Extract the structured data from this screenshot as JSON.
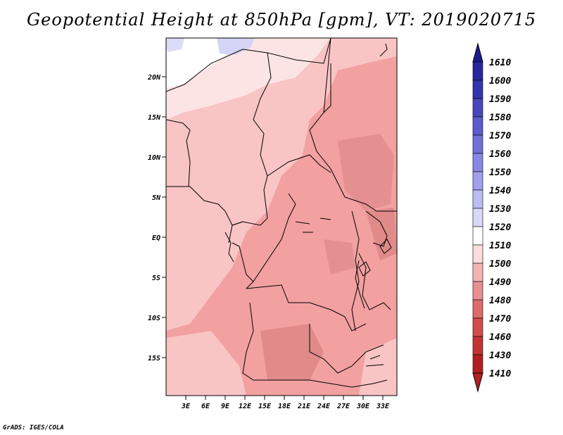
{
  "title": "Geopotential Height at 850hPa [gpm], VT: 2019020715",
  "credit": "GrADS: IGES/COLA",
  "map": {
    "lat_labels": [
      "20N",
      "15N",
      "10N",
      "5N",
      "EQ",
      "5S",
      "10S",
      "15S"
    ],
    "lon_labels": [
      "3E",
      "6E",
      "9E",
      "12E",
      "15E",
      "18E",
      "21E",
      "24E",
      "27E",
      "30E",
      "33E"
    ]
  },
  "colorbar": {
    "levels": [
      "1610",
      "1600",
      "1590",
      "1580",
      "1570",
      "1560",
      "1550",
      "1540",
      "1530",
      "1520",
      "1510",
      "1500",
      "1490",
      "1480",
      "1470",
      "1460",
      "1430",
      "1410"
    ],
    "colors": [
      "#1c1c8c",
      "#28289c",
      "#3434ac",
      "#4848bc",
      "#5c5ccc",
      "#7070d8",
      "#8888e4",
      "#a0a0ec",
      "#bcbcf2",
      "#d8d8f8",
      "#ffffff",
      "#fcdcdc",
      "#f4b4b4",
      "#e89090",
      "#dc6c6c",
      "#d24c4c",
      "#c23434",
      "#b02020"
    ]
  }
}
